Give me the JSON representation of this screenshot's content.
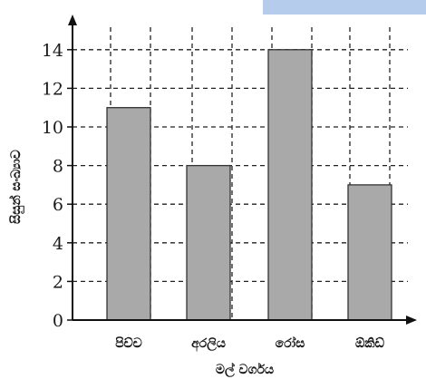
{
  "chart_data": {
    "type": "bar",
    "categories": [
      "පිච්ච",
      "අරලිය",
      "රෝස",
      "ඕකිඩ්"
    ],
    "values": [
      11,
      8,
      14,
      7
    ],
    "ylabel": "සිසුන් සංඛ්‍යාව",
    "xlabel": "මල් වර්ගය",
    "ylim": [
      0,
      15
    ],
    "yticks": [
      0,
      2,
      4,
      6,
      8,
      10,
      12,
      14
    ],
    "grid": "dashed",
    "bar_color": "#a9a9a9",
    "edge_color": "#333333",
    "grid_color": "#222222"
  }
}
